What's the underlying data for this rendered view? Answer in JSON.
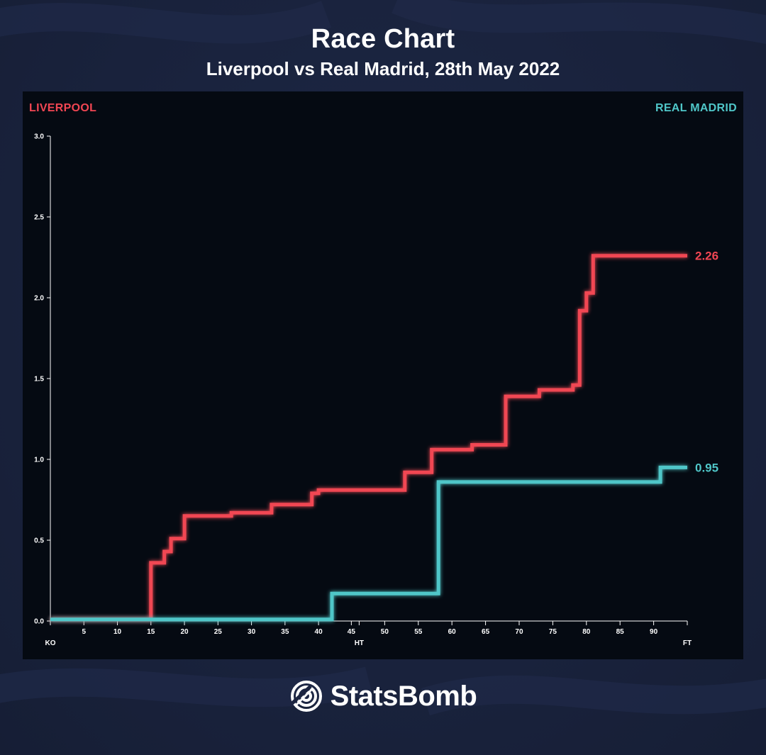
{
  "header": {
    "title": "Race Chart",
    "subtitle": "Liverpool vs Real Madrid, 28th May 2022"
  },
  "teams": {
    "home": "LIVERPOOL",
    "away": "REAL MADRID"
  },
  "colors": {
    "home": "#f14653",
    "away": "#4fc6c8",
    "axis": "#ffffff",
    "panel": "#050a12",
    "background": "#1b2440"
  },
  "brand": {
    "name": "StatsBomb",
    "icon": "statsbomb-logo-icon"
  },
  "chart_data": {
    "type": "line",
    "step": true,
    "title": "",
    "xlabel": "",
    "ylabel": "",
    "xlim": [
      0,
      95
    ],
    "ylim": [
      0,
      3.0
    ],
    "y_ticks": [
      "0.0",
      "0.5",
      "1.0",
      "1.5",
      "2.0",
      "2.5",
      "3.0"
    ],
    "x_ticks": [
      "KO",
      "5",
      "10",
      "15",
      "20",
      "25",
      "30",
      "35",
      "40",
      "45",
      "HT",
      "50",
      "55",
      "60",
      "65",
      "70",
      "75",
      "80",
      "85",
      "90",
      "FT"
    ],
    "grid": false,
    "series": [
      {
        "name": "LIVERPOOL",
        "color": "#f14653",
        "final_label": "2.26",
        "points": [
          [
            0,
            0.01
          ],
          [
            15,
            0.01
          ],
          [
            15,
            0.36
          ],
          [
            17,
            0.36
          ],
          [
            17,
            0.43
          ],
          [
            18,
            0.43
          ],
          [
            18,
            0.51
          ],
          [
            20,
            0.51
          ],
          [
            20,
            0.65
          ],
          [
            27,
            0.65
          ],
          [
            27,
            0.67
          ],
          [
            33,
            0.67
          ],
          [
            33,
            0.72
          ],
          [
            39,
            0.72
          ],
          [
            39,
            0.79
          ],
          [
            40,
            0.79
          ],
          [
            40,
            0.81
          ],
          [
            53,
            0.81
          ],
          [
            53,
            0.92
          ],
          [
            57,
            0.92
          ],
          [
            57,
            1.06
          ],
          [
            63,
            1.06
          ],
          [
            63,
            1.09
          ],
          [
            68,
            1.09
          ],
          [
            68,
            1.39
          ],
          [
            73,
            1.39
          ],
          [
            73,
            1.43
          ],
          [
            78,
            1.43
          ],
          [
            78,
            1.46
          ],
          [
            79,
            1.46
          ],
          [
            79,
            1.92
          ],
          [
            80,
            1.92
          ],
          [
            80,
            2.03
          ],
          [
            81,
            2.03
          ],
          [
            81,
            2.26
          ],
          [
            95,
            2.26
          ]
        ]
      },
      {
        "name": "REAL MADRID",
        "color": "#4fc6c8",
        "final_label": "0.95",
        "points": [
          [
            0,
            0.01
          ],
          [
            42,
            0.01
          ],
          [
            42,
            0.17
          ],
          [
            58,
            0.17
          ],
          [
            58,
            0.86
          ],
          [
            91,
            0.86
          ],
          [
            91,
            0.95
          ],
          [
            95,
            0.95
          ]
        ]
      }
    ]
  }
}
